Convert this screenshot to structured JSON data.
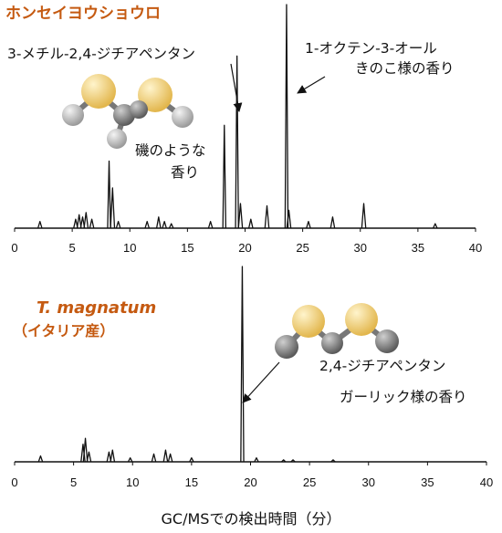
{
  "chart_data": [
    {
      "type": "line",
      "title": "ホンセイヨウショウロ",
      "subtitle": "",
      "xlim": [
        0,
        40
      ],
      "xticks": [
        0,
        5,
        10,
        15,
        20,
        25,
        30,
        35,
        40
      ],
      "ylim": [
        0,
        100
      ],
      "peaks": [
        {
          "x": 2.2,
          "y": 3
        },
        {
          "x": 5.3,
          "y": 4
        },
        {
          "x": 5.6,
          "y": 6
        },
        {
          "x": 5.9,
          "y": 5
        },
        {
          "x": 6.2,
          "y": 7
        },
        {
          "x": 6.7,
          "y": 4
        },
        {
          "x": 8.2,
          "y": 30
        },
        {
          "x": 8.5,
          "y": 18
        },
        {
          "x": 9.0,
          "y": 3
        },
        {
          "x": 11.5,
          "y": 3
        },
        {
          "x": 12.5,
          "y": 5
        },
        {
          "x": 13.0,
          "y": 3
        },
        {
          "x": 13.6,
          "y": 2
        },
        {
          "x": 17.0,
          "y": 3
        },
        {
          "x": 18.2,
          "y": 46
        },
        {
          "x": 19.3,
          "y": 77
        },
        {
          "x": 19.6,
          "y": 11
        },
        {
          "x": 20.5,
          "y": 4
        },
        {
          "x": 21.9,
          "y": 10
        },
        {
          "x": 23.6,
          "y": 100
        },
        {
          "x": 23.8,
          "y": 8
        },
        {
          "x": 25.5,
          "y": 3
        },
        {
          "x": 27.6,
          "y": 5
        },
        {
          "x": 30.3,
          "y": 11
        },
        {
          "x": 36.5,
          "y": 2
        }
      ],
      "annotations": [
        {
          "lines": [
            "3-メチル-2,4-ジチアペンタン"
          ],
          "x": 19.3
        },
        {
          "lines": [
            "1-オクテン-3-オール",
            "きのこ様の香り"
          ],
          "x": 23.6
        },
        {
          "lines": [
            "磯のような",
            "香り"
          ]
        }
      ]
    },
    {
      "type": "line",
      "title": "T. magnatum",
      "subtitle": "（イタリア産）",
      "xlim": [
        0,
        40
      ],
      "xticks": [
        0,
        5,
        10,
        15,
        20,
        25,
        30,
        35,
        40
      ],
      "ylim": [
        0,
        100
      ],
      "peaks": [
        {
          "x": 2.2,
          "y": 3
        },
        {
          "x": 5.8,
          "y": 9
        },
        {
          "x": 6.0,
          "y": 12
        },
        {
          "x": 6.3,
          "y": 5
        },
        {
          "x": 8.0,
          "y": 5
        },
        {
          "x": 8.3,
          "y": 6
        },
        {
          "x": 9.8,
          "y": 2
        },
        {
          "x": 11.8,
          "y": 4
        },
        {
          "x": 12.8,
          "y": 6
        },
        {
          "x": 13.2,
          "y": 4
        },
        {
          "x": 15.0,
          "y": 2
        },
        {
          "x": 19.3,
          "y": 100
        },
        {
          "x": 20.5,
          "y": 2
        },
        {
          "x": 22.8,
          "y": 1
        },
        {
          "x": 23.6,
          "y": 1
        },
        {
          "x": 27.0,
          "y": 1
        }
      ],
      "annotations": [
        {
          "lines": [
            "2,4-ジチアペンタン",
            "ガーリック様の香り"
          ],
          "x": 19.3
        }
      ]
    }
  ],
  "xlabel": "GC/MSでの検出時間（分）",
  "colors": {
    "title": "#c55a11",
    "trace": "#111111",
    "sulfur_atom": "#f0cf78",
    "carbon_atom": "#8a8a8a",
    "hydrogen_atom": "#c4c4c4"
  },
  "icons": {
    "molecule": "2,4-dithiapentane-ball-and-stick-model"
  }
}
